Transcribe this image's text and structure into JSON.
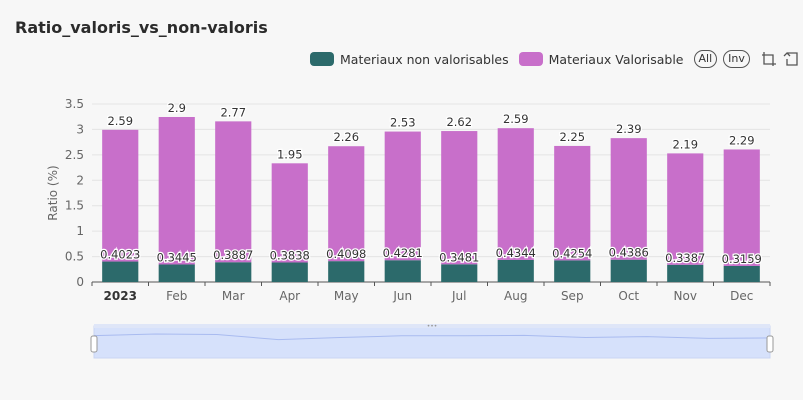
{
  "title": "Ratio_valoris_vs_non-valoris",
  "legend": {
    "items": [
      {
        "label": "Materiaux non valorisables",
        "color": "#2c6a6b"
      },
      {
        "label": "Materiaux Valorisable",
        "color": "#c86fca"
      }
    ],
    "all_label": "All",
    "inv_label": "Inv"
  },
  "toolbox": {
    "icons": [
      "rect-select-icon",
      "undo-select-icon"
    ]
  },
  "chart_data": {
    "type": "bar",
    "stacked": true,
    "categories": [
      "2023",
      "Feb",
      "Mar",
      "Apr",
      "May",
      "Jun",
      "Jul",
      "Aug",
      "Sep",
      "Oct",
      "Nov",
      "Dec"
    ],
    "series": [
      {
        "name": "Materiaux non valorisables",
        "color": "#2c6a6b",
        "values": [
          0.4023,
          0.3445,
          0.3887,
          0.3838,
          0.4098,
          0.4281,
          0.3481,
          0.4344,
          0.4254,
          0.4386,
          0.3387,
          0.3159
        ],
        "labels": [
          "0.4023",
          "0.3445",
          "0.3887",
          "0.3838",
          "0.4098",
          "0.4281",
          "0.3481",
          "0.4344",
          "0.4254",
          "0.4386",
          "0.3387",
          "0.3159"
        ]
      },
      {
        "name": "Materiaux Valorisable",
        "color": "#c86fca",
        "values": [
          2.59,
          2.9,
          2.77,
          1.95,
          2.26,
          2.53,
          2.62,
          2.59,
          2.25,
          2.39,
          2.19,
          2.29
        ],
        "labels": [
          "2.59",
          "2.9",
          "2.77",
          "1.95",
          "2.26",
          "2.53",
          "2.62",
          "2.59",
          "2.25",
          "2.39",
          "2.19",
          "2.29"
        ]
      }
    ],
    "ylabel": "Ratio (%)",
    "xlabel": "",
    "ylim": [
      0,
      3.5
    ],
    "yticks": [
      "0",
      "0.5",
      "1",
      "1.5",
      "2",
      "2.5",
      "3",
      "3.5"
    ],
    "grid": true,
    "legend_position": "top-right",
    "bold_first_category": true
  },
  "data_zoom": {
    "start": 0,
    "end": 100,
    "colors": {
      "fill": "#d6e1fb",
      "line": "#a9bbf0"
    }
  }
}
